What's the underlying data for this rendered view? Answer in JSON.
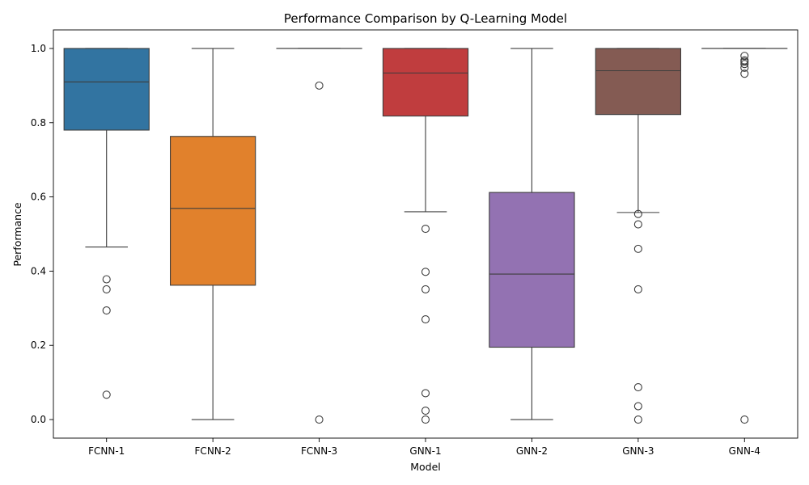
{
  "chart_data": {
    "type": "box",
    "title": "Performance Comparison by Q-Learning Model",
    "xlabel": "Model",
    "ylabel": "Performance",
    "ylim": [
      -0.05,
      1.05
    ],
    "yticks": [
      "0.0",
      "0.2",
      "0.4",
      "0.6",
      "0.8",
      "1.0"
    ],
    "grid": false,
    "categories": [
      "FCNN-1",
      "FCNN-2",
      "FCNN-3",
      "GNN-1",
      "GNN-2",
      "GNN-3",
      "GNN-4"
    ],
    "boxes": [
      {
        "category": "FCNN-1",
        "color": "#3274a1",
        "whisker_low": 0.465,
        "q1": 0.78,
        "median": 0.91,
        "q3": 1.0,
        "whisker_high": 1.0,
        "outliers": [
          0.378,
          0.351,
          0.294,
          0.067
        ]
      },
      {
        "category": "FCNN-2",
        "color": "#e1812c",
        "whisker_low": 0.0,
        "q1": 0.362,
        "median": 0.569,
        "q3": 0.763,
        "whisker_high": 1.0,
        "outliers": []
      },
      {
        "category": "FCNN-3",
        "color": "#3a923a",
        "whisker_low": 1.0,
        "q1": 1.0,
        "median": 1.0,
        "q3": 1.0,
        "whisker_high": 1.0,
        "outliers": [
          0.9,
          0.0
        ]
      },
      {
        "category": "GNN-1",
        "color": "#c03d3e",
        "whisker_low": 0.56,
        "q1": 0.818,
        "median": 0.934,
        "q3": 1.0,
        "whisker_high": 1.0,
        "outliers": [
          0.514,
          0.398,
          0.351,
          0.27,
          0.071,
          0.024,
          0.0
        ]
      },
      {
        "category": "GNN-2",
        "color": "#9372b2",
        "whisker_low": 0.0,
        "q1": 0.195,
        "median": 0.392,
        "q3": 0.612,
        "whisker_high": 1.0,
        "outliers": []
      },
      {
        "category": "GNN-3",
        "color": "#845b53",
        "whisker_low": 0.558,
        "q1": 0.822,
        "median": 0.94,
        "q3": 1.0,
        "whisker_high": 1.0,
        "outliers": [
          0.554,
          0.526,
          0.46,
          0.351,
          0.087,
          0.036,
          0.0
        ]
      },
      {
        "category": "GNN-4",
        "color": "#d684bd",
        "whisker_low": 1.0,
        "q1": 1.0,
        "median": 1.0,
        "q3": 1.0,
        "whisker_high": 1.0,
        "outliers": [
          0.98,
          0.968,
          0.964,
          0.958,
          0.948,
          0.932,
          0.0
        ]
      }
    ]
  }
}
